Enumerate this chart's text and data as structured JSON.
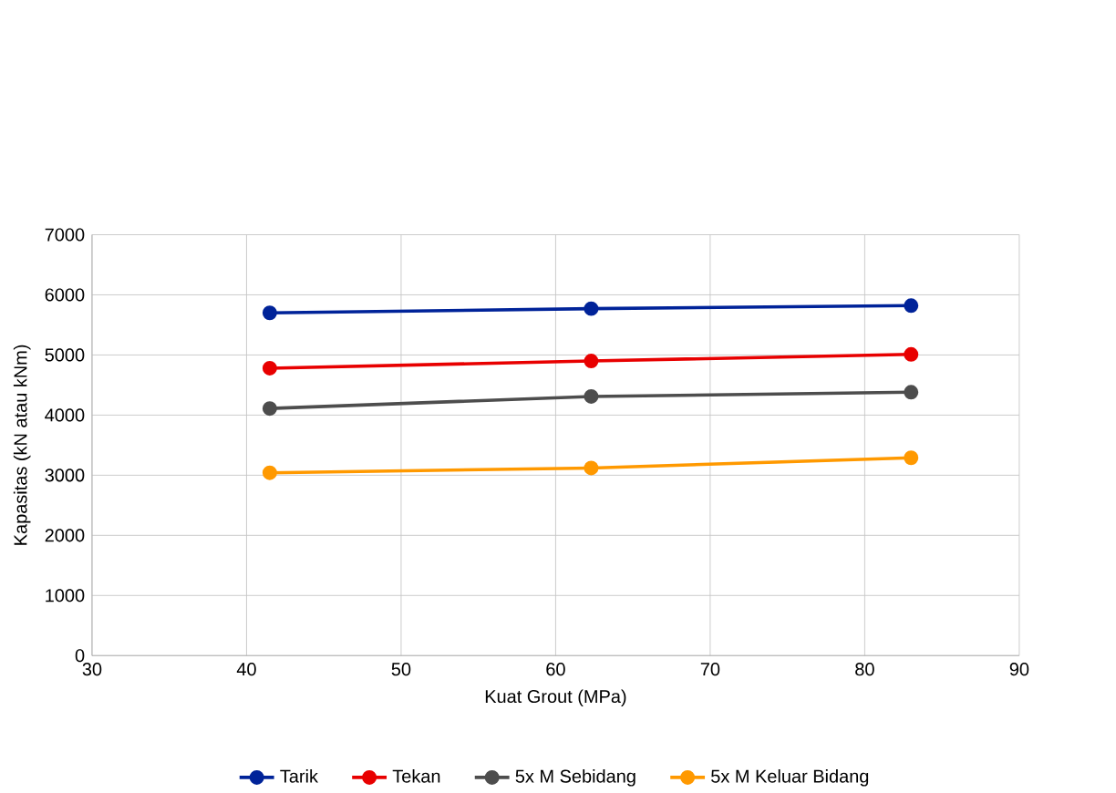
{
  "chart_data": {
    "type": "line",
    "xlabel": "Kuat Grout (MPa)",
    "ylabel": "Kapasitas  (kN atau kNm)",
    "xlim": [
      30,
      90
    ],
    "xticks": [
      30,
      40,
      50,
      60,
      70,
      80,
      90
    ],
    "ylim": [
      0,
      7000
    ],
    "yticks": [
      0,
      1000,
      2000,
      3000,
      4000,
      5000,
      6000,
      7000
    ],
    "grid": true,
    "legend": "bottom",
    "marker": "circle",
    "line_style": "solid",
    "series": [
      {
        "name": "Tarik",
        "color": "#002399",
        "x": [
          41.5,
          62.3,
          83.0
        ],
        "values": [
          5700,
          5770,
          5820
        ]
      },
      {
        "name": "Tekan",
        "color": "#e80000",
        "x": [
          41.5,
          62.3,
          83.0
        ],
        "values": [
          4780,
          4900,
          5010
        ]
      },
      {
        "name": "5x M Sebidang",
        "color": "#4d4d4d",
        "x": [
          41.5,
          62.3,
          83.0
        ],
        "values": [
          4110,
          4310,
          4380
        ]
      },
      {
        "name": "5x M Keluar Bidang",
        "color": "#ff9900",
        "x": [
          41.5,
          62.3,
          83.0
        ],
        "values": [
          3040,
          3120,
          3290
        ]
      }
    ]
  }
}
